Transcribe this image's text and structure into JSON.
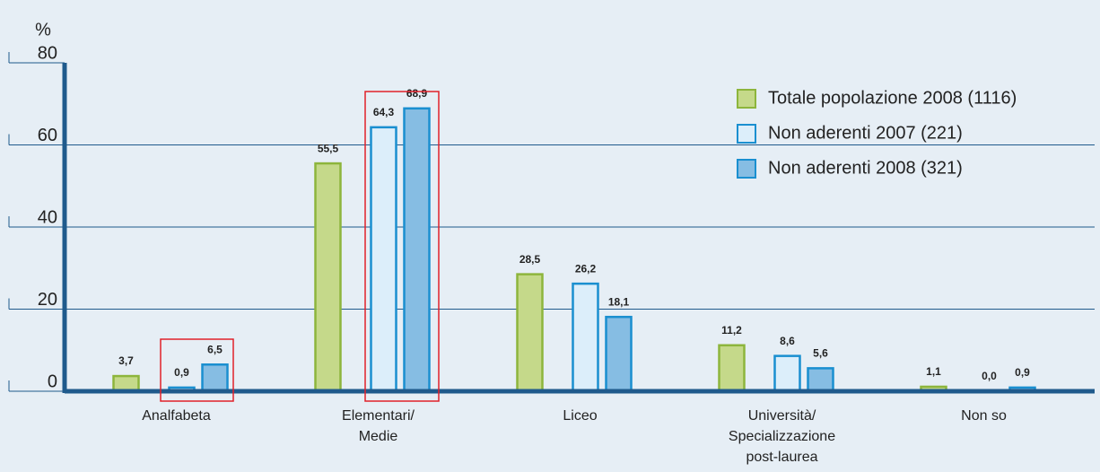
{
  "chart_data": {
    "type": "bar",
    "y_label": "%",
    "categories": [
      [
        "Analfabeta"
      ],
      [
        "Elementari/",
        "Medie"
      ],
      [
        "Liceo"
      ],
      [
        "Università/",
        "Specializzazione",
        "post-laurea"
      ],
      [
        "Non so"
      ]
    ],
    "series": [
      {
        "name": "Totale popolazione 2008 (1116)",
        "color": "#c5d98a",
        "stroke": "#8db53c",
        "values": [
          3.7,
          55.5,
          28.5,
          11.2,
          1.1
        ],
        "value_labels": [
          "3,7",
          "55,5",
          "28,5",
          "11,2",
          "1,1"
        ]
      },
      {
        "name": "Non aderenti 2007 (221)",
        "color": "#dceefa",
        "stroke": "#1a8fd0",
        "values": [
          0.9,
          64.3,
          26.2,
          8.6,
          0.0
        ],
        "value_labels": [
          "0,9",
          "64,3",
          "26,2",
          "8,6",
          "0,0"
        ]
      },
      {
        "name": "Non aderenti 2008 (321)",
        "color": "#86bde3",
        "stroke": "#1a8fd0",
        "values": [
          6.5,
          68.9,
          18.1,
          5.6,
          0.9
        ],
        "value_labels": [
          "6,5",
          "68,9",
          "18,1",
          "5,6",
          "0,9"
        ]
      }
    ],
    "ylim": [
      0,
      80
    ],
    "yticks": [
      0,
      20,
      40,
      60,
      80
    ],
    "grid": true,
    "legend": "upper right"
  }
}
